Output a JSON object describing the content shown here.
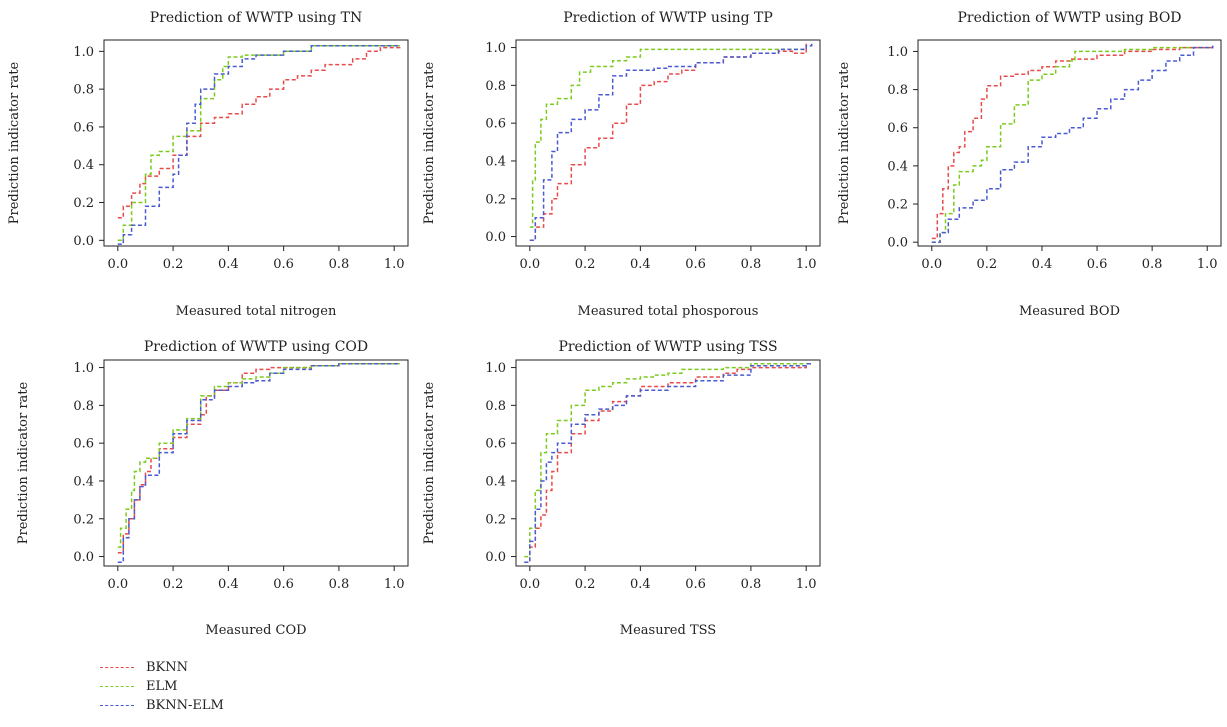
{
  "chart_data": [
    {
      "type": "line",
      "title": "Prediction of WWTP using TN",
      "xlabel": "Measured total nitrogen",
      "ylabel": "Prediction indicator rate",
      "xlim": [
        -0.05,
        1.05
      ],
      "ylim": [
        -0.03,
        1.06
      ],
      "xticks": [
        "0.0",
        "0.2",
        "0.4",
        "0.6",
        "0.8",
        "1.0"
      ],
      "yticks": [
        "0.0",
        "0.2",
        "0.4",
        "0.6",
        "0.8",
        "1.0"
      ],
      "grid": false,
      "series": [
        {
          "name": "BKNN",
          "x": [
            0.0,
            0.02,
            0.05,
            0.08,
            0.1,
            0.15,
            0.2,
            0.25,
            0.3,
            0.35,
            0.4,
            0.45,
            0.5,
            0.55,
            0.6,
            0.65,
            0.7,
            0.75,
            0.8,
            0.85,
            0.9,
            0.95,
            1.02
          ],
          "y": [
            0.12,
            0.18,
            0.25,
            0.3,
            0.34,
            0.38,
            0.45,
            0.55,
            0.62,
            0.65,
            0.67,
            0.72,
            0.76,
            0.8,
            0.85,
            0.87,
            0.9,
            0.93,
            0.93,
            0.96,
            1.0,
            1.02,
            1.03
          ]
        },
        {
          "name": "ELM",
          "x": [
            0.0,
            0.02,
            0.05,
            0.1,
            0.12,
            0.15,
            0.2,
            0.25,
            0.3,
            0.35,
            0.38,
            0.4,
            0.45,
            0.5,
            0.6,
            0.7,
            0.8,
            1.02
          ],
          "y": [
            0.0,
            0.08,
            0.2,
            0.35,
            0.45,
            0.47,
            0.55,
            0.58,
            0.75,
            0.85,
            0.92,
            0.97,
            0.98,
            0.98,
            1.0,
            1.03,
            1.03,
            1.03
          ]
        },
        {
          "name": "BKNN-ELM",
          "x": [
            0.0,
            0.02,
            0.05,
            0.1,
            0.15,
            0.2,
            0.22,
            0.25,
            0.28,
            0.3,
            0.35,
            0.4,
            0.45,
            0.5,
            0.6,
            0.7,
            0.8,
            1.02
          ],
          "y": [
            -0.02,
            0.03,
            0.08,
            0.18,
            0.28,
            0.35,
            0.45,
            0.62,
            0.72,
            0.8,
            0.88,
            0.92,
            0.96,
            0.98,
            1.0,
            1.03,
            1.03,
            1.03
          ]
        }
      ]
    },
    {
      "type": "line",
      "title": "Prediction of WWTP using TP",
      "xlabel": "Measured total phosporous",
      "ylabel": "Prediction indicator rate",
      "xlim": [
        -0.05,
        1.05
      ],
      "ylim": [
        -0.05,
        1.04
      ],
      "xticks": [
        "0.0",
        "0.2",
        "0.4",
        "0.6",
        "0.8",
        "1.0"
      ],
      "yticks": [
        "0.0",
        "0.2",
        "0.4",
        "0.6",
        "0.8",
        "1.0"
      ],
      "grid": false,
      "series": [
        {
          "name": "BKNN",
          "x": [
            0.0,
            0.02,
            0.05,
            0.08,
            0.1,
            0.15,
            0.2,
            0.25,
            0.3,
            0.35,
            0.4,
            0.45,
            0.5,
            0.55,
            0.6,
            0.7,
            0.8,
            0.9,
            0.95,
            1.0
          ],
          "y": [
            -0.02,
            0.05,
            0.12,
            0.2,
            0.28,
            0.38,
            0.47,
            0.52,
            0.6,
            0.7,
            0.8,
            0.82,
            0.86,
            0.88,
            0.92,
            0.95,
            0.97,
            0.98,
            0.97,
            1.02
          ]
        },
        {
          "name": "ELM",
          "x": [
            0.0,
            0.01,
            0.02,
            0.04,
            0.06,
            0.1,
            0.15,
            0.18,
            0.22,
            0.3,
            0.35,
            0.4,
            0.5,
            0.6,
            0.7,
            0.8,
            0.9,
            1.0
          ],
          "y": [
            0.05,
            0.3,
            0.5,
            0.62,
            0.7,
            0.73,
            0.8,
            0.87,
            0.9,
            0.93,
            0.95,
            0.99,
            0.99,
            0.99,
            0.99,
            0.99,
            0.99,
            1.0
          ]
        },
        {
          "name": "BKNN-ELM",
          "x": [
            0.0,
            0.02,
            0.05,
            0.08,
            0.1,
            0.15,
            0.2,
            0.25,
            0.3,
            0.35,
            0.4,
            0.45,
            0.5,
            0.6,
            0.7,
            0.8,
            0.9,
            1.0,
            1.02
          ],
          "y": [
            -0.02,
            0.1,
            0.3,
            0.45,
            0.55,
            0.62,
            0.67,
            0.75,
            0.85,
            0.88,
            0.88,
            0.89,
            0.9,
            0.92,
            0.95,
            0.97,
            0.99,
            1.01,
            1.02
          ]
        }
      ]
    },
    {
      "type": "line",
      "title": "Prediction of WWTP using BOD",
      "xlabel": "Measured BOD",
      "ylabel": "Prediction indicator rate",
      "xlim": [
        -0.05,
        1.05
      ],
      "ylim": [
        -0.02,
        1.06
      ],
      "xticks": [
        "0.0",
        "0.2",
        "0.4",
        "0.6",
        "0.8",
        "1.0"
      ],
      "yticks": [
        "0.0",
        "0.2",
        "0.4",
        "0.6",
        "0.8",
        "1.0"
      ],
      "grid": false,
      "series": [
        {
          "name": "BKNN",
          "x": [
            0.0,
            0.02,
            0.04,
            0.06,
            0.08,
            0.1,
            0.12,
            0.15,
            0.18,
            0.2,
            0.25,
            0.3,
            0.35,
            0.4,
            0.45,
            0.5,
            0.55,
            0.6,
            0.7,
            0.8,
            0.9,
            1.02
          ],
          "y": [
            0.02,
            0.15,
            0.28,
            0.4,
            0.47,
            0.5,
            0.58,
            0.65,
            0.75,
            0.82,
            0.87,
            0.88,
            0.9,
            0.92,
            0.95,
            0.96,
            0.96,
            0.98,
            1.0,
            1.01,
            1.02,
            1.03
          ]
        },
        {
          "name": "ELM",
          "x": [
            0.0,
            0.03,
            0.05,
            0.08,
            0.1,
            0.15,
            0.18,
            0.2,
            0.25,
            0.3,
            0.35,
            0.4,
            0.45,
            0.5,
            0.52,
            0.6,
            0.7,
            0.8,
            1.02
          ],
          "y": [
            0.0,
            0.05,
            0.15,
            0.3,
            0.37,
            0.4,
            0.43,
            0.5,
            0.62,
            0.72,
            0.85,
            0.88,
            0.92,
            0.95,
            1.0,
            1.0,
            1.01,
            1.02,
            1.03
          ]
        },
        {
          "name": "BKNN-ELM",
          "x": [
            0.0,
            0.03,
            0.06,
            0.1,
            0.15,
            0.2,
            0.25,
            0.3,
            0.35,
            0.4,
            0.45,
            0.5,
            0.55,
            0.6,
            0.65,
            0.7,
            0.75,
            0.8,
            0.85,
            0.9,
            0.95,
            1.02
          ],
          "y": [
            0.0,
            0.05,
            0.12,
            0.18,
            0.22,
            0.28,
            0.38,
            0.42,
            0.5,
            0.55,
            0.57,
            0.6,
            0.65,
            0.7,
            0.75,
            0.8,
            0.85,
            0.9,
            0.95,
            0.98,
            1.02,
            1.03
          ]
        }
      ]
    },
    {
      "type": "line",
      "title": "Prediction of WWTP using COD",
      "xlabel": "Measured COD",
      "ylabel": "Prediction indicator rate",
      "xlim": [
        -0.05,
        1.05
      ],
      "ylim": [
        -0.05,
        1.04
      ],
      "xticks": [
        "0.0",
        "0.2",
        "0.4",
        "0.6",
        "0.8",
        "1.0"
      ],
      "yticks": [
        "0.0",
        "0.2",
        "0.4",
        "0.6",
        "0.8",
        "1.0"
      ],
      "grid": false,
      "series": [
        {
          "name": "BKNN",
          "x": [
            0.0,
            0.02,
            0.04,
            0.06,
            0.08,
            0.1,
            0.12,
            0.15,
            0.2,
            0.25,
            0.3,
            0.32,
            0.35,
            0.4,
            0.45,
            0.5,
            0.55,
            0.6,
            0.7,
            0.8,
            0.9,
            1.02
          ],
          "y": [
            0.02,
            0.12,
            0.2,
            0.3,
            0.38,
            0.45,
            0.52,
            0.57,
            0.63,
            0.7,
            0.75,
            0.85,
            0.88,
            0.92,
            0.97,
            0.99,
            1.0,
            1.0,
            1.01,
            1.02,
            1.02,
            1.02
          ]
        },
        {
          "name": "ELM",
          "x": [
            0.0,
            0.01,
            0.03,
            0.05,
            0.06,
            0.08,
            0.1,
            0.15,
            0.2,
            0.25,
            0.3,
            0.35,
            0.4,
            0.45,
            0.5,
            0.55,
            0.6,
            0.7,
            0.8,
            1.02
          ],
          "y": [
            0.05,
            0.15,
            0.25,
            0.35,
            0.45,
            0.5,
            0.52,
            0.6,
            0.67,
            0.73,
            0.85,
            0.9,
            0.92,
            0.94,
            0.95,
            0.97,
            1.0,
            1.01,
            1.02,
            1.02
          ]
        },
        {
          "name": "BKNN-ELM",
          "x": [
            0.0,
            0.02,
            0.04,
            0.06,
            0.08,
            0.1,
            0.15,
            0.2,
            0.25,
            0.3,
            0.35,
            0.4,
            0.45,
            0.5,
            0.55,
            0.6,
            0.7,
            0.8,
            0.9,
            1.02
          ],
          "y": [
            -0.03,
            0.1,
            0.2,
            0.3,
            0.37,
            0.43,
            0.55,
            0.65,
            0.72,
            0.83,
            0.88,
            0.9,
            0.92,
            0.93,
            0.97,
            0.99,
            1.01,
            1.02,
            1.02,
            1.02
          ]
        }
      ]
    },
    {
      "type": "line",
      "title": "Prediction of WWTP using TSS",
      "xlabel": "Measured TSS",
      "ylabel": "Prediction indicator rate",
      "xlim": [
        -0.05,
        1.05
      ],
      "ylim": [
        -0.05,
        1.04
      ],
      "xticks": [
        "0.0",
        "0.2",
        "0.4",
        "0.6",
        "0.8",
        "1.0"
      ],
      "yticks": [
        "0.0",
        "0.2",
        "0.4",
        "0.6",
        "0.8",
        "1.0"
      ],
      "grid": false,
      "series": [
        {
          "name": "BKNN",
          "x": [
            -0.02,
            0.0,
            0.02,
            0.04,
            0.06,
            0.08,
            0.1,
            0.15,
            0.2,
            0.25,
            0.3,
            0.35,
            0.4,
            0.5,
            0.6,
            0.7,
            0.75,
            0.8,
            1.0,
            1.02
          ],
          "y": [
            -0.03,
            0.05,
            0.15,
            0.22,
            0.35,
            0.45,
            0.55,
            0.65,
            0.72,
            0.77,
            0.82,
            0.85,
            0.9,
            0.92,
            0.95,
            0.97,
            0.99,
            1.0,
            1.02,
            1.02
          ]
        },
        {
          "name": "ELM",
          "x": [
            -0.02,
            0.0,
            0.02,
            0.04,
            0.06,
            0.1,
            0.15,
            0.2,
            0.25,
            0.3,
            0.35,
            0.4,
            0.45,
            0.5,
            0.55,
            0.6,
            0.7,
            0.8,
            1.02
          ],
          "y": [
            0.0,
            0.15,
            0.35,
            0.55,
            0.65,
            0.72,
            0.8,
            0.88,
            0.9,
            0.92,
            0.94,
            0.95,
            0.96,
            0.97,
            0.99,
            0.99,
            1.0,
            1.02,
            1.02
          ]
        },
        {
          "name": "BKNN-ELM",
          "x": [
            -0.02,
            0.0,
            0.02,
            0.04,
            0.06,
            0.08,
            0.1,
            0.15,
            0.2,
            0.25,
            0.3,
            0.35,
            0.4,
            0.5,
            0.6,
            0.7,
            0.8,
            1.0,
            1.02
          ],
          "y": [
            -0.03,
            0.08,
            0.25,
            0.4,
            0.5,
            0.55,
            0.6,
            0.7,
            0.75,
            0.78,
            0.8,
            0.85,
            0.88,
            0.9,
            0.93,
            0.96,
            1.01,
            1.02,
            1.02
          ]
        }
      ]
    }
  ],
  "legend": {
    "items": [
      {
        "label": "BKNN",
        "color": "#e84b4b"
      },
      {
        "label": "ELM",
        "color": "#7ccb1f"
      },
      {
        "label": "BKNN-ELM",
        "color": "#4a5bd1"
      }
    ]
  },
  "colors": {
    "BKNN": "#e84b4b",
    "ELM": "#7ccb1f",
    "BKNN-ELM": "#4a5bd1"
  }
}
